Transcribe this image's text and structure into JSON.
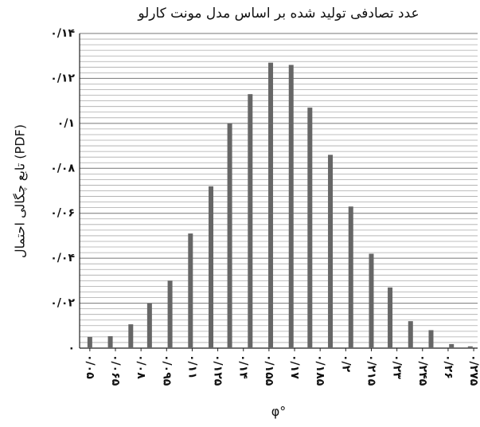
{
  "chart_data": {
    "type": "bar",
    "title": "عدد تصادفی تولید شده بر اساس مدل مونت کارلو",
    "x_label": "φ°",
    "y_label": "تابع چگالی احتمال (PDF)",
    "x": [
      0.05,
      0.062,
      0.074,
      0.085,
      0.097,
      0.109,
      0.121,
      0.132,
      0.144,
      0.156,
      0.168,
      0.179,
      0.191,
      0.203,
      0.215,
      0.226,
      0.238,
      0.25,
      0.262,
      0.273
    ],
    "values": [
      0.005,
      0.0053,
      0.0106,
      0.02,
      0.03,
      0.051,
      0.072,
      0.1,
      0.113,
      0.127,
      0.126,
      0.107,
      0.086,
      0.063,
      0.042,
      0.027,
      0.012,
      0.008,
      0.0018,
      0.0008
    ],
    "color": "#666666",
    "xlim": [
      0.044,
      0.2773
    ],
    "ylim": [
      0,
      0.14
    ],
    "xticks": [
      {
        "value": 0.05,
        "label": "۰/۰۵"
      },
      {
        "value": 0.065,
        "label": "۰/۰۶۵"
      },
      {
        "value": 0.08,
        "label": "۰/۰۸"
      },
      {
        "value": 0.095,
        "label": "۰/۰۹۵"
      },
      {
        "value": 0.11,
        "label": "۰/۱۱"
      },
      {
        "value": 0.125,
        "label": "۰/۱۲۵"
      },
      {
        "value": 0.14,
        "label": "۰/۱۴"
      },
      {
        "value": 0.155,
        "label": "۰/۱۵۵"
      },
      {
        "value": 0.17,
        "label": "۰/۱۷"
      },
      {
        "value": 0.185,
        "label": "۰/۱۸۵"
      },
      {
        "value": 0.2,
        "label": "۰/۲"
      },
      {
        "value": 0.215,
        "label": "۰/۲۱۵"
      },
      {
        "value": 0.23,
        "label": "۰/۲۳"
      },
      {
        "value": 0.245,
        "label": "۰/۲۴۵"
      },
      {
        "value": 0.26,
        "label": "۰/۲۶"
      },
      {
        "value": 0.275,
        "label": "۰/۲۷۵"
      }
    ],
    "yticks": [
      {
        "value": 0,
        "label": "۰"
      },
      {
        "value": 0.02,
        "label": "۰/۰۲"
      },
      {
        "value": 0.04,
        "label": "۰/۰۴"
      },
      {
        "value": 0.06,
        "label": "۰/۰۶"
      },
      {
        "value": 0.08,
        "label": "۰/۰۸"
      },
      {
        "value": 0.1,
        "label": "۰/۱"
      },
      {
        "value": 0.12,
        "label": "۰/۱۲"
      },
      {
        "value": 0.14,
        "label": "۰/۱۴"
      }
    ],
    "grid": true,
    "minor_grid_divisions": 8
  }
}
